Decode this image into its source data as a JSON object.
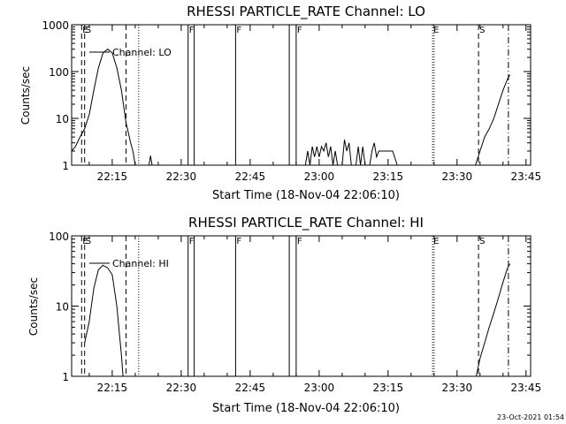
{
  "footer_timestamp": "23-Oct-2021 01:54",
  "chart_data": [
    {
      "type": "line",
      "title": "RHESSI PARTICLE_RATE Channel: LO",
      "xlabel": "Start Time (18-Nov-04 22:06:10)",
      "ylabel": "Counts/sec",
      "yscale": "log",
      "xlim": [
        "22:06:10",
        "23:46:00"
      ],
      "ylim": [
        1,
        1000
      ],
      "x_ticks": [
        "22:15",
        "22:30",
        "22:45",
        "23:00",
        "23:15",
        "23:30",
        "23:45"
      ],
      "y_ticks": [
        "1",
        "10",
        "100",
        "1000"
      ],
      "legend": "Channel: LO",
      "legend_position": "top-left",
      "grid": false,
      "markers": [
        {
          "time": "22:08:20",
          "style": "dashed",
          "label": "E"
        },
        {
          "time": "22:09:00",
          "style": "dashed",
          "label": "S"
        },
        {
          "time": "22:18:00",
          "style": "dashed",
          "label": ""
        },
        {
          "time": "22:20:45",
          "style": "dotted",
          "label": ""
        },
        {
          "time": "22:31:30",
          "style": "solid",
          "label": "F"
        },
        {
          "time": "22:32:50",
          "style": "solid",
          "label": ""
        },
        {
          "time": "22:41:50",
          "style": "solid",
          "label": "F"
        },
        {
          "time": "22:53:30",
          "style": "solid",
          "label": ""
        },
        {
          "time": "22:55:00",
          "style": "solid",
          "label": "F"
        },
        {
          "time": "23:24:40",
          "style": "dotted",
          "label": "E"
        },
        {
          "time": "23:25:00",
          "style": "dotted",
          "label": ""
        },
        {
          "time": "23:34:40",
          "style": "dashed",
          "label": "S"
        },
        {
          "time": "23:41:10",
          "style": "dashdot",
          "label": ""
        }
      ],
      "segments": [
        [
          [
            "22:06:10",
            2
          ],
          [
            "22:07:00",
            2.5
          ],
          [
            "22:08:00",
            4
          ],
          [
            "22:09:00",
            6
          ],
          [
            "22:10:00",
            12
          ],
          [
            "22:11:00",
            40
          ],
          [
            "22:12:00",
            120
          ],
          [
            "22:13:00",
            250
          ],
          [
            "22:14:00",
            300
          ],
          [
            "22:15:00",
            250
          ],
          [
            "22:16:00",
            120
          ],
          [
            "22:17:00",
            40
          ],
          [
            "22:18:00",
            8
          ],
          [
            "22:18:30",
            5
          ],
          [
            "22:19:00",
            3
          ],
          [
            "22:19:30",
            2
          ],
          [
            "22:20:00",
            1
          ]
        ],
        [
          [
            "22:23:00",
            1
          ],
          [
            "22:23:20",
            1.6
          ],
          [
            "22:23:40",
            1
          ]
        ],
        [
          [
            "22:57:00",
            1
          ],
          [
            "22:57:30",
            2
          ],
          [
            "22:58:00",
            1
          ],
          [
            "22:58:30",
            2.5
          ],
          [
            "22:59:00",
            1.5
          ],
          [
            "22:59:30",
            2.5
          ],
          [
            "23:00:00",
            1.5
          ],
          [
            "23:00:30",
            2.5
          ],
          [
            "23:01:00",
            2
          ],
          [
            "23:01:30",
            3
          ],
          [
            "23:02:00",
            1.5
          ],
          [
            "23:02:30",
            2.5
          ],
          [
            "23:03:00",
            1
          ],
          [
            "23:03:30",
            2
          ],
          [
            "23:04:00",
            1
          ],
          [
            "23:05:00",
            1
          ],
          [
            "23:05:30",
            3.5
          ],
          [
            "23:06:00",
            2
          ],
          [
            "23:06:30",
            3
          ],
          [
            "23:07:00",
            1
          ],
          [
            "23:08:00",
            1
          ],
          [
            "23:08:30",
            2.5
          ],
          [
            "23:09:00",
            1
          ],
          [
            "23:09:30",
            2.5
          ],
          [
            "23:10:00",
            1
          ],
          [
            "23:11:00",
            1
          ],
          [
            "23:11:30",
            2
          ],
          [
            "23:12:00",
            3
          ],
          [
            "23:12:30",
            1.5
          ],
          [
            "23:13:00",
            2
          ],
          [
            "23:14:00",
            2
          ],
          [
            "23:15:00",
            2
          ],
          [
            "23:16:00",
            2
          ],
          [
            "23:17:00",
            1
          ]
        ],
        [
          [
            "23:34:00",
            1
          ],
          [
            "23:35:00",
            2
          ],
          [
            "23:36:00",
            4
          ],
          [
            "23:37:00",
            6
          ],
          [
            "23:38:00",
            10
          ],
          [
            "23:39:00",
            20
          ],
          [
            "23:40:00",
            40
          ],
          [
            "23:41:00",
            70
          ],
          [
            "23:41:30",
            85
          ]
        ]
      ]
    },
    {
      "type": "line",
      "title": "RHESSI PARTICLE_RATE Channel: HI",
      "xlabel": "Start Time (18-Nov-04 22:06:10)",
      "ylabel": "Counts/sec",
      "yscale": "log",
      "xlim": [
        "22:06:10",
        "23:46:00"
      ],
      "ylim": [
        1,
        100
      ],
      "x_ticks": [
        "22:15",
        "22:30",
        "22:45",
        "23:00",
        "23:15",
        "23:30",
        "23:45"
      ],
      "y_ticks": [
        "1",
        "10",
        "100"
      ],
      "legend": "Channel: HI",
      "legend_position": "top-left",
      "grid": false,
      "markers": [
        {
          "time": "22:08:20",
          "style": "dashed",
          "label": "E"
        },
        {
          "time": "22:09:00",
          "style": "dashed",
          "label": "S"
        },
        {
          "time": "22:18:00",
          "style": "dashed",
          "label": ""
        },
        {
          "time": "22:20:45",
          "style": "dotted",
          "label": ""
        },
        {
          "time": "22:31:30",
          "style": "solid",
          "label": "F"
        },
        {
          "time": "22:32:50",
          "style": "solid",
          "label": ""
        },
        {
          "time": "22:41:50",
          "style": "solid",
          "label": "F"
        },
        {
          "time": "22:53:30",
          "style": "solid",
          "label": ""
        },
        {
          "time": "22:55:00",
          "style": "solid",
          "label": "F"
        },
        {
          "time": "23:24:40",
          "style": "dotted",
          "label": "E"
        },
        {
          "time": "23:25:00",
          "style": "dotted",
          "label": ""
        },
        {
          "time": "23:34:40",
          "style": "dashed",
          "label": "S"
        },
        {
          "time": "23:41:10",
          "style": "dashdot",
          "label": ""
        }
      ],
      "segments": [
        [
          [
            "22:09:00",
            3
          ],
          [
            "22:10:00",
            6
          ],
          [
            "22:11:00",
            18
          ],
          [
            "22:12:00",
            33
          ],
          [
            "22:13:00",
            38
          ],
          [
            "22:14:00",
            35
          ],
          [
            "22:15:00",
            28
          ],
          [
            "22:16:00",
            10
          ],
          [
            "22:17:00",
            2
          ],
          [
            "22:17:20",
            1
          ]
        ],
        [
          [
            "23:34:10",
            1
          ],
          [
            "23:35:00",
            1.8
          ],
          [
            "23:36:00",
            3
          ],
          [
            "23:37:00",
            5
          ],
          [
            "23:38:00",
            8
          ],
          [
            "23:39:00",
            13
          ],
          [
            "23:40:00",
            22
          ],
          [
            "23:41:00",
            35
          ],
          [
            "23:41:30",
            40
          ]
        ]
      ]
    }
  ]
}
